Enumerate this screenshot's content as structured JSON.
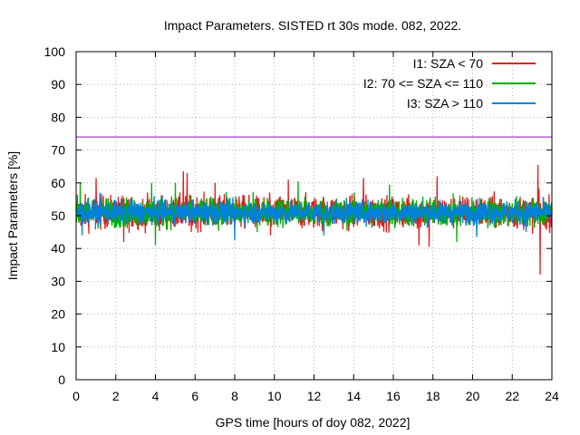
{
  "chart_data": {
    "type": "line",
    "title": "Impact Parameters. SISTED rt 30s mode. 082, 2022.",
    "xlabel": "GPS time [hours of doy 082, 2022]",
    "ylabel": "Impact Parameters [%]",
    "xlim": [
      0,
      24
    ],
    "ylim": [
      0,
      100
    ],
    "x_ticks": [
      0,
      2,
      4,
      6,
      8,
      10,
      12,
      14,
      16,
      18,
      20,
      22,
      24
    ],
    "y_ticks": [
      0,
      10,
      20,
      30,
      40,
      50,
      60,
      70,
      80,
      90,
      100
    ],
    "grid": true,
    "legend_position": "top-right",
    "reference_line": {
      "y": 74,
      "color": "#9400d3"
    },
    "series": [
      {
        "name": "I1: SZA < 70",
        "color": "#e41a1c",
        "center": 51,
        "spread": 5,
        "spikes": [
          [
            1.0,
            61.5
          ],
          [
            2.4,
            42
          ],
          [
            5.4,
            63.5
          ],
          [
            5.6,
            63
          ],
          [
            5.8,
            45
          ],
          [
            7.0,
            60
          ],
          [
            9.8,
            44
          ],
          [
            10.7,
            61
          ],
          [
            14.5,
            61.5
          ],
          [
            17.3,
            41
          ],
          [
            17.8,
            40.5
          ],
          [
            18.2,
            62
          ],
          [
            23.3,
            65.5
          ],
          [
            23.4,
            32
          ],
          [
            23.6,
            47
          ]
        ]
      },
      {
        "name": "I2: 70 <= SZA <= 110",
        "color": "#00b000",
        "center": 51,
        "spread": 4.5,
        "spikes": [
          [
            0.2,
            60
          ],
          [
            3.8,
            60
          ],
          [
            4.0,
            41
          ],
          [
            5.0,
            60
          ],
          [
            11.2,
            60.5
          ],
          [
            15.8,
            59.5
          ],
          [
            19.2,
            42
          ]
        ]
      },
      {
        "name": "I3: SZA > 110",
        "color": "#0080e0",
        "center": 51,
        "spread": 3.5,
        "spikes": [
          [
            0.3,
            44
          ],
          [
            1.2,
            57
          ],
          [
            8.0,
            42.5
          ],
          [
            12.5,
            44
          ],
          [
            20.2,
            43.5
          ],
          [
            22.7,
            45
          ]
        ]
      }
    ]
  }
}
